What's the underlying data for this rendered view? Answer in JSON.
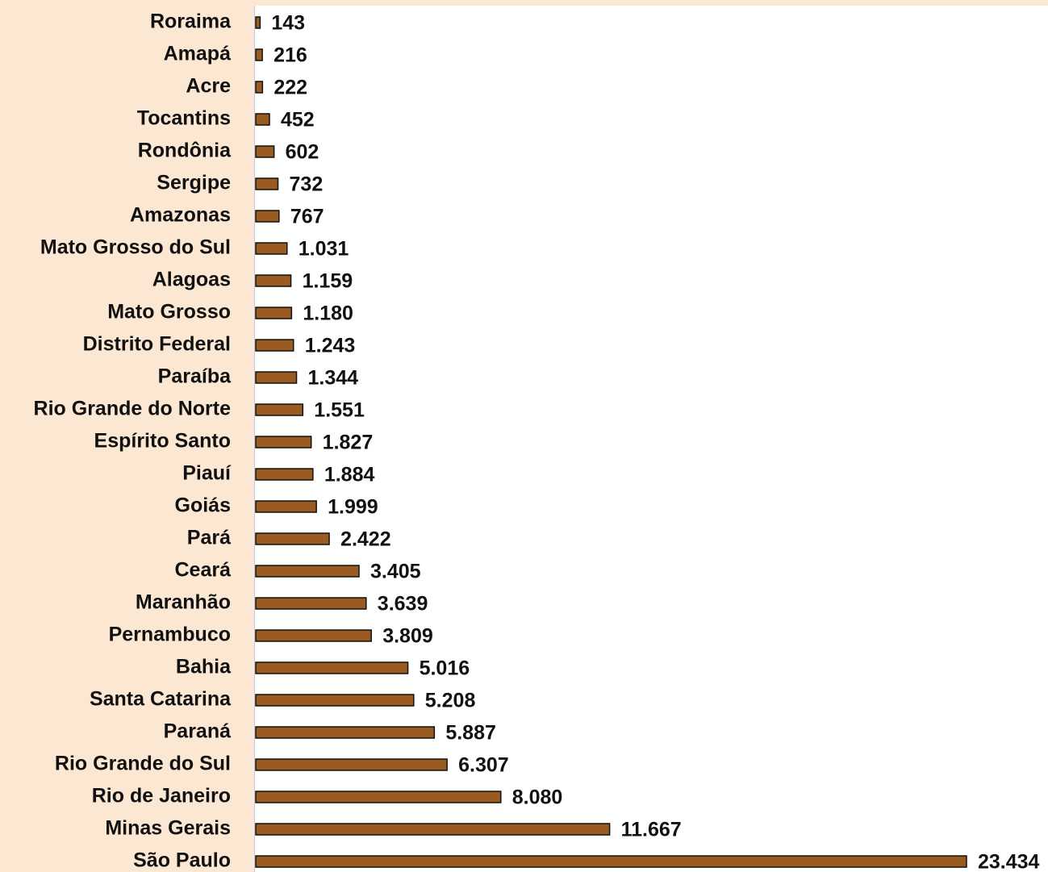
{
  "chart_data": {
    "type": "bar",
    "orientation": "horizontal",
    "color": "#9a5b22",
    "categories": [
      "Roraima",
      "Amapá",
      "Acre",
      "Tocantins",
      "Rondônia",
      "Sergipe",
      "Amazonas",
      "Mato Grosso do Sul",
      "Alagoas",
      "Mato Grosso",
      "Distrito Federal",
      "Paraíba",
      "Rio Grande do Norte",
      "Espírito Santo",
      "Piauí",
      "Goiás",
      "Pará",
      "Ceará",
      "Maranhão",
      "Pernambuco",
      "Bahia",
      "Santa Catarina",
      "Paraná",
      "Rio Grande do Sul",
      "Rio de Janeiro",
      "Minas Gerais",
      "São Paulo"
    ],
    "values": [
      143,
      216,
      222,
      452,
      602,
      732,
      767,
      1031,
      1159,
      1180,
      1243,
      1344,
      1551,
      1827,
      1884,
      1999,
      2422,
      3405,
      3639,
      3809,
      5016,
      5208,
      5887,
      6307,
      8080,
      11667,
      23434
    ],
    "value_labels": [
      "143",
      "216",
      "222",
      "452",
      "602",
      "732",
      "767",
      "1.031",
      "1.159",
      "1.180",
      "1.243",
      "1.344",
      "1.551",
      "1.827",
      "1.884",
      "1.999",
      "2.422",
      "3.405",
      "3.639",
      "3.809",
      "5.016",
      "5.208",
      "5.887",
      "6.307",
      "8.080",
      "11.667",
      "23.434"
    ]
  }
}
